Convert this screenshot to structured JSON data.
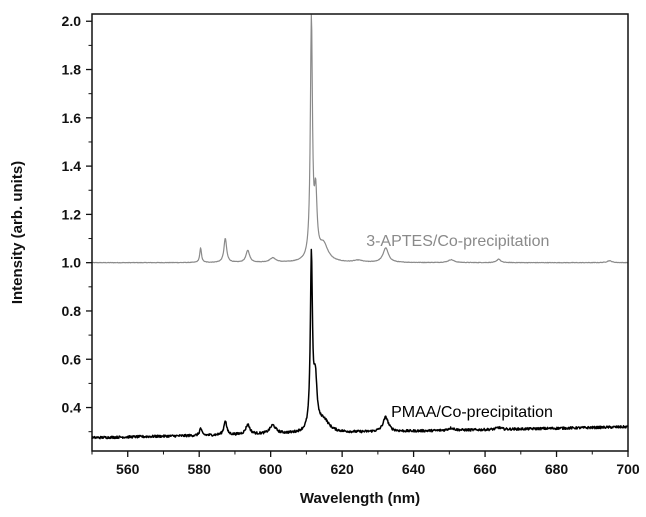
{
  "chart_data": {
    "type": "line",
    "xlabel": "Wavelength (nm)",
    "ylabel": "Intensity (arb. units)",
    "xlim": [
      550,
      700
    ],
    "ylim": [
      0.22,
      2.03
    ],
    "x_ticks": [
      560,
      580,
      600,
      620,
      640,
      660,
      680,
      700
    ],
    "y_ticks": [
      0.4,
      0.6,
      0.8,
      1.0,
      1.2,
      1.4,
      1.6,
      1.8,
      2.0
    ],
    "x_tick_labels": [
      "560",
      "580",
      "600",
      "620",
      "640",
      "660",
      "680",
      "700"
    ],
    "y_tick_labels": [
      "0.4",
      "0.6",
      "0.8",
      "1.0",
      "1.2",
      "1.4",
      "1.6",
      "1.8",
      "2.0"
    ],
    "grid": false,
    "series": [
      {
        "name": "3-APTES/Co-precipitation",
        "color": "#8a8a8a",
        "baseline": 1.0,
        "noise": 0.001,
        "peaks": [
          {
            "x": 580.4,
            "height": 0.06,
            "width": 0.3
          },
          {
            "x": 587.3,
            "height": 0.1,
            "width": 0.45
          },
          {
            "x": 593.6,
            "height": 0.05,
            "width": 0.6
          },
          {
            "x": 600.6,
            "height": 0.018,
            "width": 1.0
          },
          {
            "x": 611.4,
            "height": 0.99,
            "width": 0.35
          },
          {
            "x": 612.6,
            "height": 0.25,
            "width": 0.45
          },
          {
            "x": 614.8,
            "height": 0.07,
            "width": 1.5
          },
          {
            "x": 624.5,
            "height": 0.008,
            "width": 1.5
          },
          {
            "x": 632.2,
            "height": 0.06,
            "width": 0.9
          },
          {
            "x": 650.5,
            "height": 0.012,
            "width": 1.0
          },
          {
            "x": 663.8,
            "height": 0.015,
            "width": 0.6
          },
          {
            "x": 694.8,
            "height": 0.008,
            "width": 0.8
          }
        ]
      },
      {
        "name": "PMAA/Co-precipitation",
        "color": "#000000",
        "baseline_start": 0.275,
        "baseline_end": 0.32,
        "noise": 0.005,
        "peaks": [
          {
            "x": 580.4,
            "height": 0.03,
            "width": 0.35
          },
          {
            "x": 587.3,
            "height": 0.06,
            "width": 0.45
          },
          {
            "x": 593.6,
            "height": 0.04,
            "width": 0.7
          },
          {
            "x": 600.6,
            "height": 0.035,
            "width": 1.0
          },
          {
            "x": 611.4,
            "height": 0.71,
            "width": 0.35
          },
          {
            "x": 612.5,
            "height": 0.2,
            "width": 0.55
          },
          {
            "x": 614.8,
            "height": 0.05,
            "width": 1.8
          },
          {
            "x": 632.2,
            "height": 0.06,
            "width": 0.9
          },
          {
            "x": 650.5,
            "height": 0.01,
            "width": 1.0
          },
          {
            "x": 663.8,
            "height": 0.008,
            "width": 0.8
          }
        ]
      }
    ],
    "annotations": [
      {
        "text": "3-APTES/Co-precipitation",
        "x": 678,
        "y": 1.07,
        "color": "#8a8a8a"
      },
      {
        "text": "PMAA/Co-precipitation",
        "x": 679,
        "y": 0.36,
        "color": "#000000"
      }
    ]
  }
}
